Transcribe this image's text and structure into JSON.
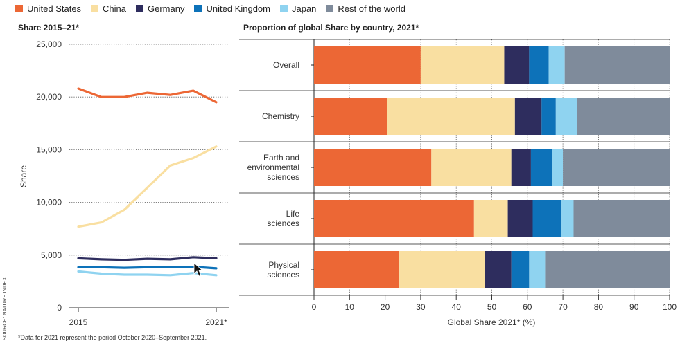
{
  "legend": [
    {
      "name": "United States",
      "color": "#ec6735"
    },
    {
      "name": "China",
      "color": "#f9dfa1"
    },
    {
      "name": "Germany",
      "color": "#2e2d5e"
    },
    {
      "name": "United Kingdom",
      "color": "#0d72b9"
    },
    {
      "name": "Japan",
      "color": "#8fd3f0"
    },
    {
      "name": "Rest of the world",
      "color": "#7f8b9b"
    }
  ],
  "left_title": "Share 2015–21*",
  "right_title": "Proportion of global Share by country, 2021*",
  "footnote": "*Data for 2021 represent the period October 2020–September 2021.",
  "source": "SOURCE: NATURE INDEX",
  "chart_data": [
    {
      "type": "line",
      "title": "Share 2015–21*",
      "ylabel": "Share",
      "xlabel": "",
      "ylim": [
        0,
        25000
      ],
      "y_ticks": [
        "0",
        "5,000",
        "10,000",
        "15,000",
        "20,000",
        "25,000"
      ],
      "x_ticks": [
        "2015",
        "2021*"
      ],
      "grid": "horizontal dotted",
      "x": [
        2015,
        2016,
        2017,
        2018,
        2019,
        2020,
        2021
      ],
      "series": [
        {
          "name": "United States",
          "color": "#ec6735",
          "values": [
            20800,
            20000,
            20000,
            20400,
            20200,
            20600,
            19500
          ]
        },
        {
          "name": "China",
          "color": "#f9dfa1",
          "values": [
            7700,
            8100,
            9300,
            11400,
            13500,
            14200,
            15300
          ]
        },
        {
          "name": "Germany",
          "color": "#2e2d5e",
          "values": [
            4700,
            4600,
            4550,
            4650,
            4600,
            4800,
            4700
          ]
        },
        {
          "name": "United Kingdom",
          "color": "#0d72b9",
          "values": [
            3850,
            3850,
            3800,
            3850,
            3850,
            3900,
            3750
          ]
        },
        {
          "name": "Japan",
          "color": "#8fd3f0",
          "values": [
            3450,
            3250,
            3150,
            3150,
            3100,
            3300,
            3100
          ]
        }
      ]
    },
    {
      "type": "bar",
      "orientation": "horizontal",
      "stacked": true,
      "title": "Proportion of global Share by country, 2021*",
      "xlabel": "Global Share 2021* (%)",
      "xlim": [
        0,
        100
      ],
      "x_ticks": [
        "0",
        "10",
        "20",
        "30",
        "40",
        "50",
        "60",
        "70",
        "80",
        "90",
        "100"
      ],
      "categories": [
        "Overall",
        "Chemistry",
        "Earth and environmental sciences",
        "Life sciences",
        "Physical sciences"
      ],
      "category_lines": [
        [
          "Overall"
        ],
        [
          "Chemistry"
        ],
        [
          "Earth and",
          "environmental",
          "sciences"
        ],
        [
          "Life",
          "sciences"
        ],
        [
          "Physical",
          "sciences"
        ]
      ],
      "series": [
        {
          "name": "United States",
          "color": "#ec6735",
          "values": [
            30,
            20.5,
            33,
            45,
            24
          ]
        },
        {
          "name": "China",
          "color": "#f9dfa1",
          "values": [
            23.5,
            36,
            22.5,
            9.5,
            24
          ]
        },
        {
          "name": "Germany",
          "color": "#2e2d5e",
          "values": [
            7,
            7.5,
            5.5,
            7,
            7.5
          ]
        },
        {
          "name": "United Kingdom",
          "color": "#0d72b9",
          "values": [
            5.5,
            4,
            6,
            8,
            5
          ]
        },
        {
          "name": "Japan",
          "color": "#8fd3f0",
          "values": [
            4.5,
            6,
            3,
            3.5,
            4.5
          ]
        },
        {
          "name": "Rest of the world",
          "color": "#7f8b9b",
          "values": [
            29.5,
            26,
            30,
            27,
            35
          ]
        }
      ]
    }
  ]
}
